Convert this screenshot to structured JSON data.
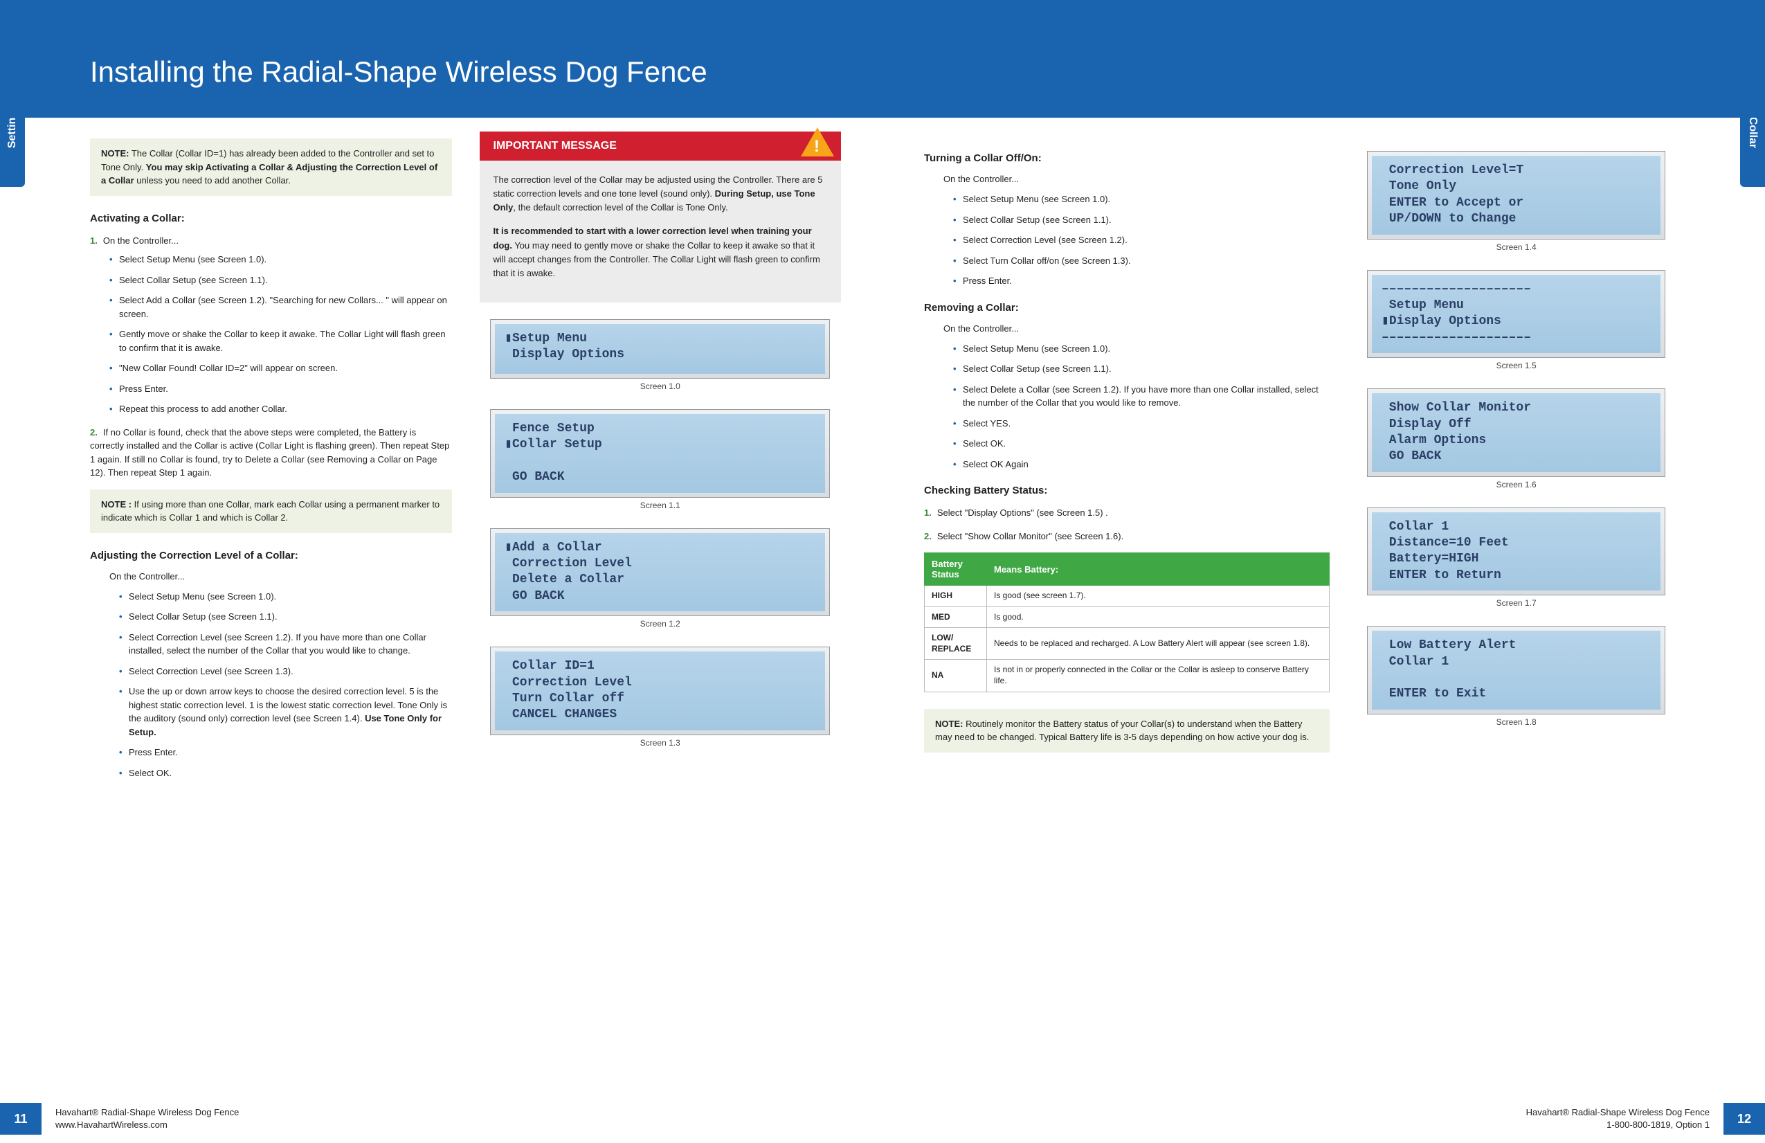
{
  "pageTitle": "Installing the Radial-Shape Wireless Dog Fence",
  "sideTab": "Setting Up the Collar",
  "leftPage": {
    "pageNum": "11",
    "footer1": "Havahart® Radial-Shape Wireless Dog Fence",
    "footer2": "www.HavahartWireless.com",
    "note1_label": "NOTE:",
    "note1_a": " The Collar (Collar ID=1) has already been added to the Controller and set to Tone Only. ",
    "note1_b": "You may skip Activating a Collar & Adjusting the Correction Level of a Collar",
    "note1_c": " unless you need to add another Collar.",
    "activating_h": "Activating a Collar:",
    "act_step1_intro": "On the Controller...",
    "act_bullets": [
      "Select Setup Menu (see Screen 1.0).",
      "Select Collar Setup (see Screen 1.1).",
      "Select Add a Collar (see Screen 1.2). \"Searching for new Collars... \" will appear on screen.",
      "Gently move or shake the Collar to keep it awake. The Collar Light will flash green to confirm that it is awake.",
      "\"New Collar Found! Collar ID=2\"  will appear on screen.",
      "Press Enter.",
      "Repeat this process to add another Collar."
    ],
    "act_step2": "If no Collar is found, check that the above steps were completed, the Battery is correctly installed and the Collar is active (Collar Light is flashing green). Then repeat Step 1 again. If still no Collar is found, try to Delete a Collar (see Removing a Collar on Page 12). Then repeat Step 1 again.",
    "note2_label": "NOTE :",
    "note2": " If using more than one Collar, mark each Collar using a permanent marker to indicate which is Collar 1 and which is Collar 2.",
    "adjusting_h": "Adjusting the Correction Level of a Collar:",
    "adj_intro": "On the Controller...",
    "adj_bullets": [
      "Select Setup Menu (see Screen 1.0).",
      "Select Collar Setup (see Screen 1.1).",
      "Select Correction Level (see Screen 1.2). If you have more than one Collar installed,  select the number of the Collar that you would like to change.",
      "Select Correction Level (see Screen 1.3).",
      "Use the up or down arrow keys to choose the desired correction level.  5 is the highest static correction level. 1 is the lowest static correction level. Tone Only is the auditory (sound only) correction level (see Screen 1.4).  <b>Use Tone Only for Setup.</b>",
      "Press Enter.",
      "Select OK."
    ],
    "important_header": "IMPORTANT MESSAGE",
    "imp_p1_a": "The correction level of the Collar may be adjusted using the Controller. There are 5 static correction levels and one tone level (sound only). ",
    "imp_p1_b": "During Setup, use Tone Only",
    "imp_p1_c": ", the default correction level of the Collar is Tone Only.",
    "imp_p2_a": "It is recommended to start with a lower correction level when training your dog.",
    "imp_p2_b": " You may need to gently move or shake the Collar to keep it awake so that it will accept changes from the Controller. The Collar Light will flash green to confirm that it is awake.",
    "screens": {
      "s10": {
        "text": "▮Setup Menu\n Display Options",
        "cap": "Screen 1.0"
      },
      "s11": {
        "text": " Fence Setup\n▮Collar Setup\n\n GO BACK",
        "cap": "Screen 1.1"
      },
      "s12": {
        "text": "▮Add a Collar\n Correction Level\n Delete a Collar\n GO BACK",
        "cap": "Screen 1.2"
      },
      "s13": {
        "text": " Collar ID=1\n Correction Level\n Turn Collar off\n CANCEL CHANGES",
        "cap": "Screen 1.3"
      }
    }
  },
  "rightPage": {
    "pageNum": "12",
    "footer1": "Havahart® Radial-Shape Wireless Dog Fence",
    "footer2": "1-800-800-1819, Option 1",
    "turning_h": "Turning a Collar Off/On:",
    "turn_intro": "On the Controller...",
    "turn_bullets": [
      "Select Setup Menu (see Screen 1.0).",
      "Select Collar Setup (see Screen 1.1).",
      "Select Correction Level (see Screen 1.2).",
      "Select Turn Collar off/on (see Screen 1.3).",
      "Press Enter."
    ],
    "removing_h": "Removing a Collar:",
    "rem_intro": "On the Controller...",
    "rem_bullets": [
      "Select Setup Menu (see Screen 1.0).",
      "Select Collar Setup (see Screen 1.1).",
      "Select Delete a Collar (see Screen 1.2). If you have more than one Collar installed, select the number of the Collar that you would like to remove.",
      "Select YES.",
      "Select OK.",
      "Select OK Again"
    ],
    "checking_h": "Checking Battery Status:",
    "chk_step1": "Select  \"Display Options\" (see Screen 1.5) .",
    "chk_step2": "Select \"Show Collar Monitor\" (see Screen 1.6).",
    "table_h1": "Battery Status",
    "table_h2": "Means Battery:",
    "table_rows": [
      [
        "HIGH",
        "Is good (see screen 1.7)."
      ],
      [
        "MED",
        "Is good."
      ],
      [
        "LOW/ REPLACE",
        "Needs to be replaced and recharged.\nA Low Battery Alert will appear (see screen 1.8)."
      ],
      [
        "NA",
        "Is not in or properly connected in the Collar or the Collar is asleep to conserve Battery life."
      ]
    ],
    "note3_label": "NOTE:",
    "note3": " Routinely monitor the Battery status of your Collar(s) to understand when the Battery may need to be changed. Typical Battery life is 3-5 days depending on how active your dog is.",
    "screens": {
      "s14": {
        "text": " Correction Level=T\n Tone Only\n ENTER to Accept or\n UP/DOWN to Change",
        "cap": "Screen 1.4"
      },
      "s15": {
        "text": "––––––––––––––––––––\n Setup Menu\n▮Display Options\n––––––––––––––––––––",
        "cap": "Screen 1.5"
      },
      "s16": {
        "text": " Show Collar Monitor\n Display Off\n Alarm Options\n GO BACK",
        "cap": "Screen 1.6"
      },
      "s17": {
        "text": " Collar 1\n Distance=10 Feet\n Battery=HIGH\n ENTER to Return",
        "cap": "Screen 1.7"
      },
      "s18": {
        "text": " Low Battery Alert\n Collar 1\n\n ENTER to Exit",
        "cap": "Screen 1.8"
      }
    }
  }
}
